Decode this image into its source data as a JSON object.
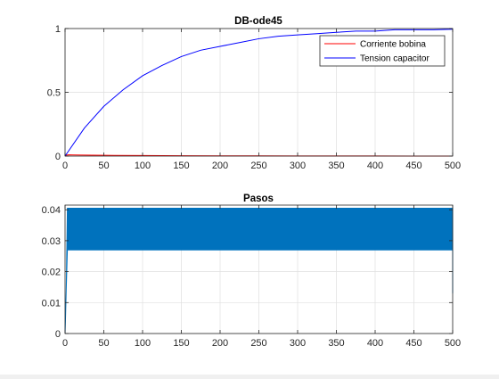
{
  "chart_data": [
    {
      "type": "line",
      "title": "DB-ode45",
      "xlabel": "",
      "ylabel": "",
      "xlim": [
        0,
        500
      ],
      "ylim": [
        0,
        1
      ],
      "xticks": [
        0,
        50,
        100,
        150,
        200,
        250,
        300,
        350,
        400,
        450,
        500
      ],
      "yticks": [
        0,
        0.5,
        1
      ],
      "ytick_labels": [
        "0",
        "0.5",
        "1"
      ],
      "grid": true,
      "legend_position": "top-right",
      "series": [
        {
          "name": "Corriente bobina",
          "color": "#ff0000",
          "x": [
            0,
            1,
            2,
            5,
            10,
            20,
            50,
            100,
            150,
            200,
            250,
            300,
            350,
            400,
            450,
            500
          ],
          "values": [
            0,
            0.004,
            0.008,
            0.01,
            0.009,
            0.008,
            0.006,
            0.004,
            0.003,
            0.002,
            0.0015,
            0.001,
            0.0008,
            0.0005,
            0.0003,
            0.0002
          ]
        },
        {
          "name": "Tension capacitor",
          "color": "#0000ff",
          "x": [
            0,
            25,
            50,
            75,
            100,
            125,
            150,
            175,
            200,
            225,
            250,
            275,
            300,
            325,
            350,
            375,
            400,
            425,
            450,
            475,
            500
          ],
          "values": [
            0,
            0.22,
            0.39,
            0.52,
            0.63,
            0.71,
            0.78,
            0.83,
            0.86,
            0.89,
            0.92,
            0.94,
            0.95,
            0.96,
            0.97,
            0.98,
            0.98,
            0.99,
            0.99,
            0.99,
            0.995
          ]
        }
      ]
    },
    {
      "type": "area",
      "title": "Pasos",
      "xlabel": "",
      "ylabel": "",
      "xlim": [
        0,
        500
      ],
      "ylim": [
        0,
        0.0415
      ],
      "xticks": [
        0,
        50,
        100,
        150,
        200,
        250,
        300,
        350,
        400,
        450,
        500
      ],
      "yticks": [
        0,
        0.01,
        0.02,
        0.03,
        0.04
      ],
      "ytick_labels": [
        "0",
        "0.01",
        "0.02",
        "0.03",
        "0.04"
      ],
      "grid": true,
      "series": [
        {
          "color": "#0072bd",
          "x": [
            0,
            0.5,
            1.5,
            3,
            500,
            500,
            500
          ],
          "low": [
            0,
            0.004,
            0.014,
            0.027,
            0.027,
            0.013,
            0.013
          ],
          "high": [
            0,
            0.004,
            0.014,
            0.0405,
            0.0405,
            0.0405,
            0.013
          ]
        }
      ]
    }
  ]
}
